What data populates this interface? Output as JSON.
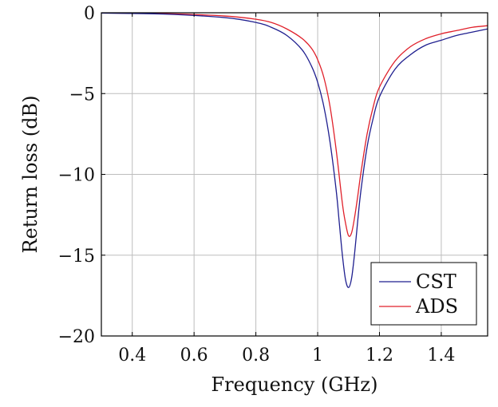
{
  "chart_data": {
    "type": "line",
    "title": "",
    "xlabel": "Frequency (GHz)",
    "ylabel": "Return loss (dB)",
    "xlim": [
      0.3,
      1.55
    ],
    "ylim": [
      -20,
      0
    ],
    "xticks": [
      0.4,
      0.6,
      0.8,
      1.0,
      1.2,
      1.4
    ],
    "xtick_labels": [
      "0.4",
      "0.6",
      "0.8",
      "1",
      "1.2",
      "1.4"
    ],
    "yticks": [
      0,
      -5,
      -10,
      -15,
      -20
    ],
    "ytick_labels": [
      "0",
      "−5",
      "−10",
      "−15",
      "−20"
    ],
    "grid": true,
    "legend_position": "bottom-right",
    "series": [
      {
        "name": "CST",
        "color": "#1f1f8f",
        "x": [
          0.3,
          0.5,
          0.7,
          0.8,
          0.85,
          0.9,
          0.95,
          0.98,
          1.0,
          1.02,
          1.04,
          1.06,
          1.07,
          1.08,
          1.09,
          1.1,
          1.11,
          1.12,
          1.13,
          1.14,
          1.16,
          1.18,
          1.2,
          1.25,
          1.3,
          1.35,
          1.4,
          1.45,
          1.5,
          1.55
        ],
        "y": [
          -0.02,
          -0.08,
          -0.3,
          -0.6,
          -0.9,
          -1.4,
          -2.3,
          -3.3,
          -4.3,
          -5.8,
          -8.0,
          -11.0,
          -13.0,
          -15.0,
          -16.5,
          -17.0,
          -16.4,
          -14.8,
          -12.8,
          -11.0,
          -8.3,
          -6.5,
          -5.2,
          -3.5,
          -2.6,
          -2.0,
          -1.7,
          -1.4,
          -1.2,
          -1.0
        ]
      },
      {
        "name": "ADS",
        "color": "#e0202a",
        "x": [
          0.3,
          0.5,
          0.7,
          0.8,
          0.85,
          0.9,
          0.95,
          0.98,
          1.0,
          1.02,
          1.04,
          1.06,
          1.08,
          1.09,
          1.1,
          1.11,
          1.12,
          1.13,
          1.14,
          1.16,
          1.18,
          1.2,
          1.25,
          1.3,
          1.35,
          1.4,
          1.45,
          1.5,
          1.55
        ],
        "y": [
          -0.01,
          -0.05,
          -0.2,
          -0.4,
          -0.6,
          -1.0,
          -1.6,
          -2.2,
          -2.9,
          -4.0,
          -5.8,
          -8.5,
          -11.8,
          -13.0,
          -13.8,
          -13.6,
          -12.6,
          -11.3,
          -9.9,
          -7.5,
          -5.8,
          -4.6,
          -3.0,
          -2.1,
          -1.6,
          -1.3,
          -1.1,
          -0.9,
          -0.8
        ]
      }
    ]
  }
}
